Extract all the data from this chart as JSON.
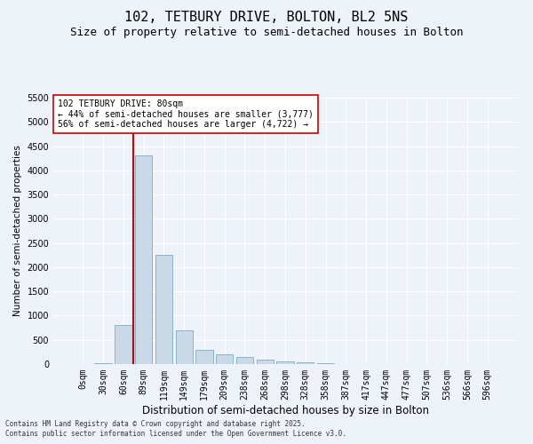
{
  "title1": "102, TETBURY DRIVE, BOLTON, BL2 5NS",
  "title2": "Size of property relative to semi-detached houses in Bolton",
  "xlabel": "Distribution of semi-detached houses by size in Bolton",
  "ylabel": "Number of semi-detached properties",
  "categories": [
    "0sqm",
    "30sqm",
    "60sqm",
    "89sqm",
    "119sqm",
    "149sqm",
    "179sqm",
    "209sqm",
    "238sqm",
    "268sqm",
    "298sqm",
    "328sqm",
    "358sqm",
    "387sqm",
    "417sqm",
    "447sqm",
    "477sqm",
    "507sqm",
    "536sqm",
    "566sqm",
    "596sqm"
  ],
  "values": [
    5,
    10,
    800,
    4300,
    2250,
    700,
    300,
    200,
    150,
    100,
    60,
    30,
    15,
    8,
    5,
    3,
    2,
    1,
    1,
    0,
    0
  ],
  "bar_color": "#c9d9e8",
  "bar_edge_color": "#7baac8",
  "vline_color": "#cc0000",
  "vline_pos": 2.5,
  "ylim": [
    0,
    5500
  ],
  "yticks": [
    0,
    500,
    1000,
    1500,
    2000,
    2500,
    3000,
    3500,
    4000,
    4500,
    5000,
    5500
  ],
  "annotation_title": "102 TETBURY DRIVE: 80sqm",
  "annotation_line1": "← 44% of semi-detached houses are smaller (3,777)",
  "annotation_line2": "56% of semi-detached houses are larger (4,722) →",
  "annotation_box_color": "#cc0000",
  "footer1": "Contains HM Land Registry data © Crown copyright and database right 2025.",
  "footer2": "Contains public sector information licensed under the Open Government Licence v3.0.",
  "bg_color": "#eef2f9",
  "grid_color": "#ffffff",
  "title1_fontsize": 11,
  "title2_fontsize": 9,
  "xlabel_fontsize": 8.5,
  "ylabel_fontsize": 7.5,
  "tick_fontsize": 7,
  "annotation_fontsize": 7,
  "footer_fontsize": 5.5
}
